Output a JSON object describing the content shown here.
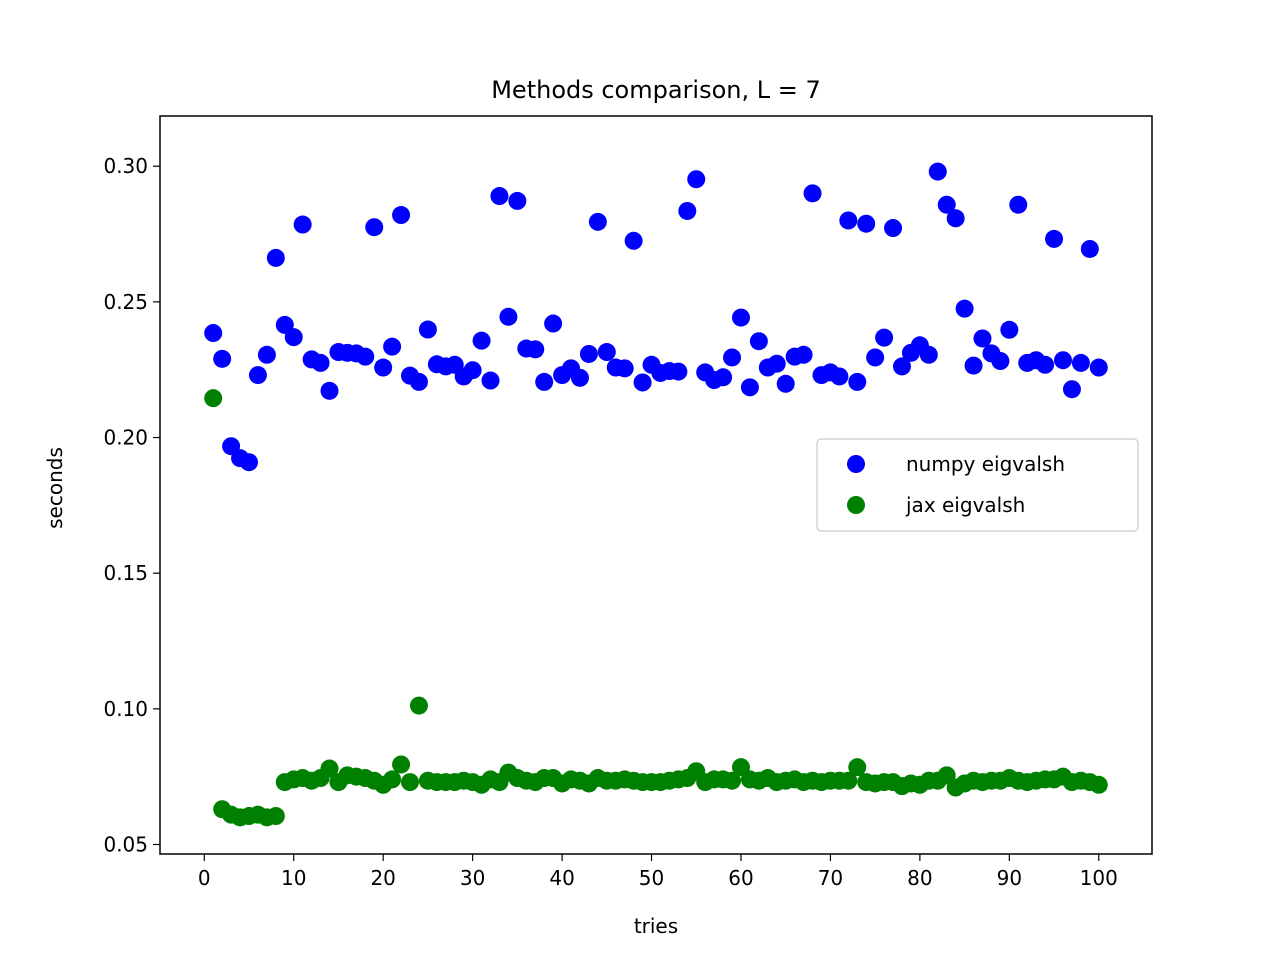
{
  "chart_data": {
    "type": "scatter",
    "title": "Methods comparison, L = 7",
    "xlabel": "tries",
    "ylabel": "seconds",
    "xlim": [
      -4.95,
      105.95
    ],
    "ylim": [
      0.0465,
      0.3185
    ],
    "xticks": [
      0,
      10,
      20,
      30,
      40,
      50,
      60,
      70,
      80,
      90,
      100
    ],
    "yticks": [
      0.05,
      0.1,
      0.15,
      0.2,
      0.25,
      0.3
    ],
    "ytick_labels": [
      "0.05",
      "0.10",
      "0.15",
      "0.20",
      "0.25",
      "0.30"
    ],
    "grid": false,
    "legend_position": "center-right",
    "x": [
      1,
      2,
      3,
      4,
      5,
      6,
      7,
      8,
      9,
      10,
      11,
      12,
      13,
      14,
      15,
      16,
      17,
      18,
      19,
      20,
      21,
      22,
      23,
      24,
      25,
      26,
      27,
      28,
      29,
      30,
      31,
      32,
      33,
      34,
      35,
      36,
      37,
      38,
      39,
      40,
      41,
      42,
      43,
      44,
      45,
      46,
      47,
      48,
      49,
      50,
      51,
      52,
      53,
      54,
      55,
      56,
      57,
      58,
      59,
      60,
      61,
      62,
      63,
      64,
      65,
      66,
      67,
      68,
      69,
      70,
      71,
      72,
      73,
      74,
      75,
      76,
      77,
      78,
      79,
      80,
      81,
      82,
      83,
      84,
      85,
      86,
      87,
      88,
      89,
      90,
      91,
      92,
      93,
      94,
      95,
      96,
      97,
      98,
      99,
      100
    ],
    "series": [
      {
        "name": "numpy eigvalsh",
        "color": "#0000ff",
        "values": [
          0.2385,
          0.229,
          0.1968,
          0.1924,
          0.1909,
          0.223,
          0.2305,
          0.2662,
          0.2415,
          0.237,
          0.2785,
          0.2288,
          0.2275,
          0.2172,
          0.2315,
          0.2312,
          0.231,
          0.2298,
          0.2775,
          0.2258,
          0.2335,
          0.282,
          0.2228,
          0.2205,
          0.2398,
          0.227,
          0.2262,
          0.2268,
          0.2225,
          0.2248,
          0.2357,
          0.221,
          0.289,
          0.2445,
          0.2872,
          0.2328,
          0.2325,
          0.2205,
          0.242,
          0.223,
          0.2255,
          0.222,
          0.2308,
          0.2795,
          0.2315,
          0.2258,
          0.2255,
          0.2725,
          0.2203,
          0.2268,
          0.2238,
          0.2245,
          0.2243,
          0.2835,
          0.2952,
          0.224,
          0.2212,
          0.2222,
          0.2295,
          0.2442,
          0.2185,
          0.2355,
          0.2258,
          0.2272,
          0.2198,
          0.2298,
          0.2305,
          0.29,
          0.223,
          0.224,
          0.2225,
          0.28,
          0.2205,
          0.2788,
          0.2295,
          0.2368,
          0.2772,
          0.2262,
          0.2312,
          0.234,
          0.2305,
          0.298,
          0.2858,
          0.2808,
          0.2475,
          0.2265,
          0.2365,
          0.231,
          0.2282,
          0.2397,
          0.2858,
          0.2275,
          0.2285,
          0.2268,
          0.2732,
          0.2285,
          0.2178,
          0.2275,
          0.2695,
          0.2258
        ]
      },
      {
        "name": "jax eigvalsh",
        "color": "#008000",
        "values": [
          0.2145,
          0.063,
          0.061,
          0.06,
          0.0605,
          0.061,
          0.06,
          0.0605,
          0.073,
          0.074,
          0.0745,
          0.0735,
          0.0745,
          0.078,
          0.073,
          0.0755,
          0.075,
          0.0745,
          0.0735,
          0.072,
          0.074,
          0.0795,
          0.073,
          0.1012,
          0.0735,
          0.073,
          0.073,
          0.073,
          0.0735,
          0.073,
          0.072,
          0.074,
          0.073,
          0.0765,
          0.0745,
          0.0735,
          0.073,
          0.0745,
          0.0745,
          0.0725,
          0.074,
          0.0735,
          0.0725,
          0.0745,
          0.0735,
          0.0735,
          0.074,
          0.0735,
          0.073,
          0.073,
          0.073,
          0.0735,
          0.074,
          0.0745,
          0.077,
          0.073,
          0.074,
          0.074,
          0.0735,
          0.0785,
          0.074,
          0.0735,
          0.0745,
          0.073,
          0.0735,
          0.074,
          0.073,
          0.0735,
          0.073,
          0.0735,
          0.0735,
          0.0735,
          0.0785,
          0.073,
          0.0725,
          0.073,
          0.073,
          0.0715,
          0.0725,
          0.072,
          0.0735,
          0.0735,
          0.0755,
          0.071,
          0.0725,
          0.0735,
          0.073,
          0.0735,
          0.0735,
          0.0745,
          0.0735,
          0.073,
          0.0735,
          0.074,
          0.074,
          0.075,
          0.073,
          0.0735,
          0.073,
          0.072
        ]
      }
    ]
  }
}
